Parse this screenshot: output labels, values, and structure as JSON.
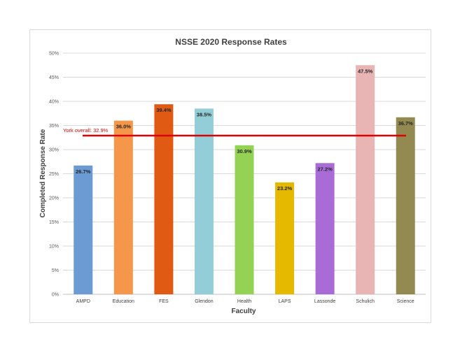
{
  "chart_data": {
    "type": "bar",
    "title": "NSSE 2020 Response Rates",
    "xlabel": "Faculty",
    "ylabel": "Completed Response Rate",
    "ylim": [
      0,
      50
    ],
    "y_ticks": [
      "0%",
      "5%",
      "10%",
      "15%",
      "20%",
      "25%",
      "30%",
      "35%",
      "40%",
      "45%",
      "50%"
    ],
    "grid": true,
    "legend": "none",
    "categories": [
      "AMPD",
      "Education",
      "FES",
      "Glendon",
      "Health",
      "LAPS",
      "Lassonde",
      "Schulich",
      "Science"
    ],
    "values": [
      26.7,
      36.0,
      39.4,
      38.5,
      30.9,
      23.2,
      27.2,
      47.5,
      36.7
    ],
    "data_labels": [
      "26.7%",
      "36.0%",
      "39.4%",
      "38.5%",
      "30.9%",
      "23.2%",
      "27.2%",
      "47.5%",
      "36.7%"
    ],
    "colors": [
      "#6b9bd2",
      "#f5974a",
      "#e15a13",
      "#93cdd8",
      "#93d252",
      "#e4b900",
      "#a96bd6",
      "#e8b4b4",
      "#938a52"
    ],
    "reference_line": {
      "value": 32.9,
      "label": "York overall: 32.9%",
      "color": "#e00000"
    }
  }
}
